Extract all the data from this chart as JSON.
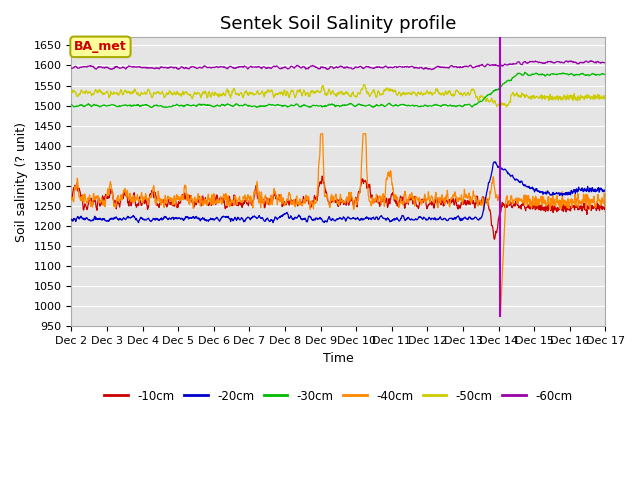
{
  "title": "Sentek Soil Salinity profile",
  "xlabel": "Time",
  "ylabel": "Soil salinity (? unit)",
  "ylim": [
    950,
    1670
  ],
  "yticks": [
    950,
    1000,
    1050,
    1100,
    1150,
    1200,
    1250,
    1300,
    1350,
    1400,
    1450,
    1500,
    1550,
    1600,
    1650
  ],
  "legend_labels": [
    "-10cm",
    "-20cm",
    "-30cm",
    "-40cm",
    "-50cm",
    "-60cm"
  ],
  "legend_colors": [
    "#cc0000",
    "#0000cc",
    "#00bb00",
    "#ff8800",
    "#cccc00",
    "#9900aa"
  ],
  "line_colors": {
    "d10": "#cc0000",
    "d20": "#0000cc",
    "d30": "#00bb00",
    "d40": "#ff8800",
    "d50": "#cccc00",
    "d60": "#9900aa"
  },
  "vline_color": "#aa00cc",
  "ba_met_label": "BA_met",
  "ba_met_color": "#cc0000",
  "ba_met_bg": "#ffff99",
  "ba_met_edge": "#aaaa00",
  "background_color": "#e5e5e5",
  "title_fontsize": 13,
  "axis_fontsize": 9,
  "tick_fontsize": 8
}
